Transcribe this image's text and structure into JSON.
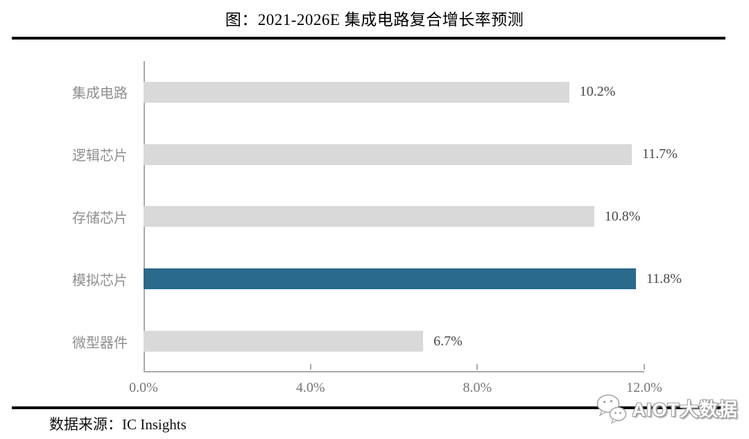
{
  "title": "图：2021-2026E 集成电路复合增长率预测",
  "source": {
    "label": "数据来源：IC Insights"
  },
  "watermark": {
    "text": "AIOT大数据",
    "icon": "chat-bubbles-logo"
  },
  "colors": {
    "bar_default": "#d9d9d9",
    "bar_highlight": "#2a6a8b",
    "axis_line": "#a9a9a9",
    "category_label": "#8f8f8f",
    "tick_label": "#767676",
    "value_label": "#484848",
    "rule": "#000000"
  },
  "chart_data": {
    "type": "bar",
    "orientation": "horizontal",
    "title": "图：2021-2026E 集成电路复合增长率预测",
    "categories": [
      "集成电路",
      "逻辑芯片",
      "存储芯片",
      "模拟芯片",
      "微型器件"
    ],
    "values": [
      10.2,
      11.7,
      10.8,
      11.8,
      6.7
    ],
    "value_labels": [
      "10.2%",
      "11.7%",
      "10.8%",
      "11.8%",
      "6.7%"
    ],
    "highlight_index": 3,
    "x_ticks": [
      "0.0%",
      "4.0%",
      "8.0%",
      "12.0%"
    ],
    "x_tick_values": [
      0,
      4,
      8,
      12
    ],
    "xlim": [
      0,
      12
    ],
    "grid": false,
    "legend": false
  }
}
